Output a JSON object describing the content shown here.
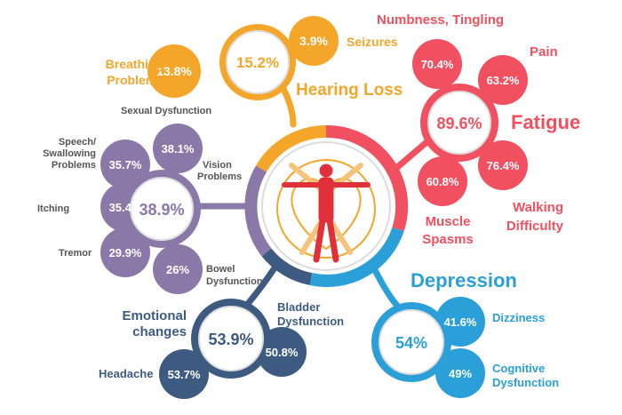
{
  "colors": {
    "orange": "#f4a62a",
    "red": "#f0505f",
    "purple": "#8a78a8",
    "navy": "#3d5a80",
    "blue": "#2b9fd8",
    "ring_gray": "#d9d9d9"
  },
  "center_icon": "vitruvian-human-figure-icon",
  "groups": {
    "hearing": {
      "title": "Hearing Loss",
      "hub_value": "15.2%",
      "items": [
        {
          "label": "Seizures",
          "value": "3.9%"
        },
        {
          "label": "Breathing Problems",
          "value": "13.8%"
        }
      ]
    },
    "fatigue": {
      "title": "Fatigue",
      "hub_value": "89.6%",
      "items": [
        {
          "label": "Numbness, Tingling",
          "value": "70.4%"
        },
        {
          "label": "Pain",
          "value": "63.2%"
        },
        {
          "label": "Walking Difficulty",
          "value": "76.4%"
        },
        {
          "label": "Muscle Spasms",
          "value": "60.8%"
        }
      ]
    },
    "vision": {
      "title": "Vision Problems",
      "hub_value": "38.9%",
      "items": [
        {
          "label": "Sexual Dysfunction",
          "value": "38.1%"
        },
        {
          "label": "Speech/ Swallowing Problems",
          "value": "35.7%"
        },
        {
          "label": "Itching",
          "value": "35.4%"
        },
        {
          "label": "Tremor",
          "value": "29.9%"
        },
        {
          "label": "Bowel Dysfunction",
          "value": "26%"
        }
      ]
    },
    "emotional": {
      "title": "Emotional changes",
      "hub_value": "53.9%",
      "items": [
        {
          "label": "Bladder Dysfunction",
          "value": "50.8%"
        },
        {
          "label": "Headache",
          "value": "53.7%"
        }
      ]
    },
    "depression": {
      "title": "Depression",
      "hub_value": "54%",
      "items": [
        {
          "label": "Dizziness",
          "value": "41.6%"
        },
        {
          "label": "Cognitive Dysfunction",
          "value": "49%"
        }
      ]
    }
  }
}
